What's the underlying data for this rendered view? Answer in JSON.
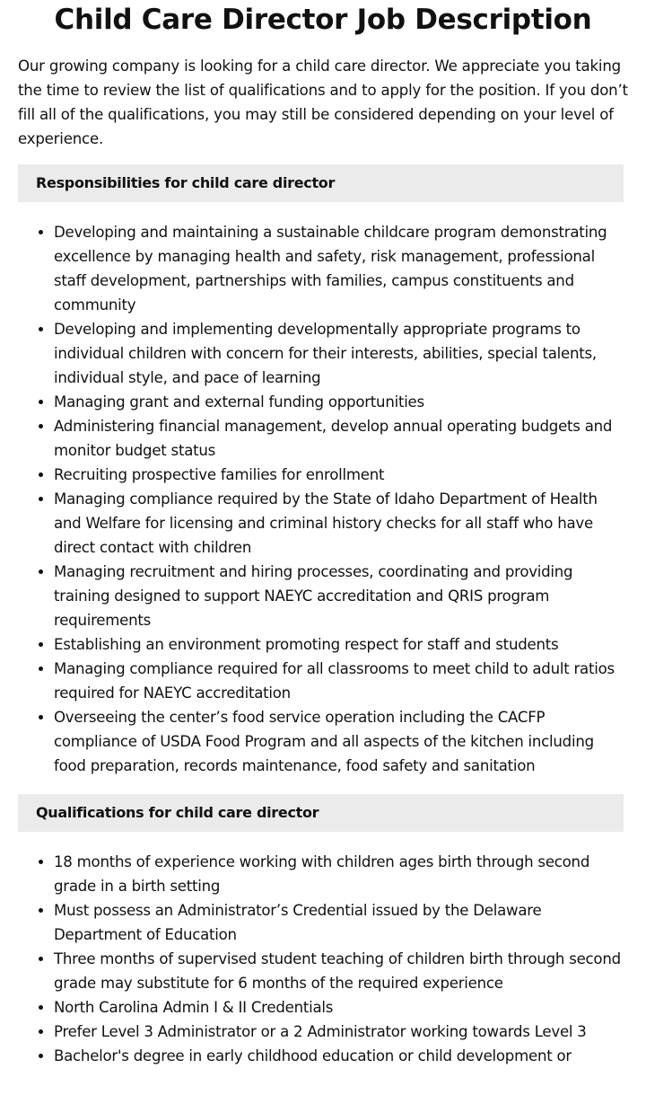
{
  "title": "Child Care Director Job Description",
  "intro": "Our growing company is looking for a child care director. We appreciate you taking the time to review the list of qualifications and to apply for the position. If you don’t fill all of the qualifications, you may still be considered depending on your level of experience.",
  "responsibilities": {
    "heading": "Responsibilities for child care director",
    "items": [
      "Developing and maintaining a sustainable childcare program demonstrating excellence by managing health and safety, risk management, professional staff development, partnerships with families, campus constituents and community",
      "Developing and implementing developmentally appropriate programs to individual children with concern for their interests, abilities, special talents, individual style, and pace of learning",
      "Managing grant and external funding opportunities",
      "Administering financial management, develop annual operating budgets and monitor budget status",
      "Recruiting prospective families for enrollment",
      "Managing compliance required by the State of Idaho Department of Health and Welfare for licensing and criminal history checks for all staff who have direct contact with children",
      "Managing recruitment and hiring processes, coordinating and providing training designed to support NAEYC accreditation and QRIS program requirements",
      "Establishing an environment promoting respect for staff and students",
      "Managing compliance required for all classrooms to meet child to adult ratios required for NAEYC accreditation",
      "Overseeing the center’s food service operation including the CACFP compliance of USDA Food Program and all aspects of the kitchen including food preparation, records maintenance, food safety and sanitation"
    ]
  },
  "qualifications": {
    "heading": "Qualifications for child care director",
    "items": [
      "18 months of experience working with children ages birth through second grade in a birth setting",
      "Must possess an Administrator’s Credential issued by the Delaware Department of Education",
      "Three months of supervised student teaching of children birth through second grade may substitute for 6 months of the required experience",
      "North Carolina Admin I & II Credentials",
      "Prefer Level 3 Administrator or a 2 Administrator working towards Level 3",
      "Bachelor's degree in early childhood education or child development or"
    ]
  }
}
